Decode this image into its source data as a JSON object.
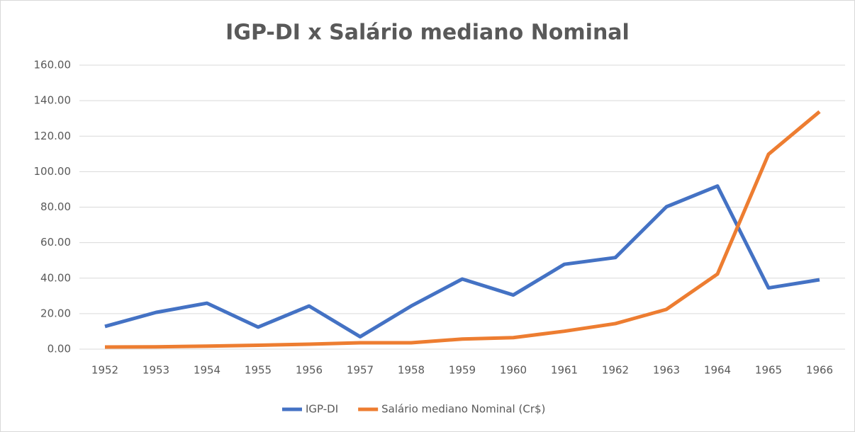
{
  "chart_data": {
    "type": "line",
    "title": "IGP-DI x Salário mediano Nominal",
    "categories": [
      "1952",
      "1953",
      "1954",
      "1955",
      "1956",
      "1957",
      "1958",
      "1959",
      "1960",
      "1961",
      "1962",
      "1963",
      "1964",
      "1965",
      "1966"
    ],
    "series": [
      {
        "name": "IGP-DI",
        "color": "#4472c4",
        "values": [
          12.8,
          20.7,
          25.9,
          12.4,
          24.3,
          7.0,
          24.3,
          39.5,
          30.5,
          47.8,
          51.6,
          80.2,
          91.9,
          34.5,
          39.1
        ]
      },
      {
        "name": "Salário mediano Nominal (Cr$)",
        "color": "#ed7d31",
        "values": [
          1.2,
          1.3,
          1.7,
          2.2,
          2.8,
          3.6,
          3.6,
          5.7,
          6.5,
          10.1,
          14.4,
          22.4,
          42.3,
          109.8,
          133.8
        ]
      }
    ],
    "ylim": [
      0,
      160
    ],
    "yticks": [
      {
        "value": 0,
        "label": "0.00"
      },
      {
        "value": 20,
        "label": "20.00"
      },
      {
        "value": 40,
        "label": "40.00"
      },
      {
        "value": 60,
        "label": "60.00"
      },
      {
        "value": 80,
        "label": "80.00"
      },
      {
        "value": 100,
        "label": "100.00"
      },
      {
        "value": 120,
        "label": "120.00"
      },
      {
        "value": 140,
        "label": "140.00"
      },
      {
        "value": 160,
        "label": "160.00"
      }
    ],
    "grid": true,
    "legend": "bottom"
  }
}
